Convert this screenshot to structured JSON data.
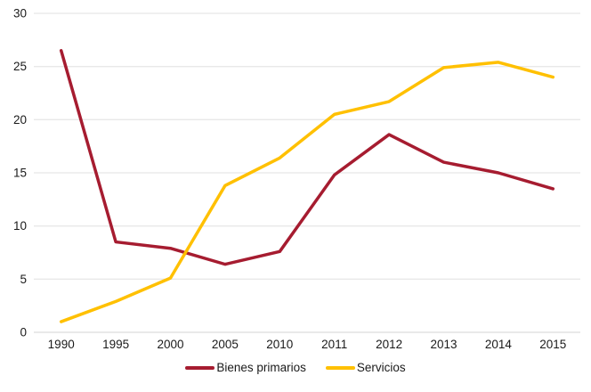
{
  "chart_data": {
    "type": "line",
    "title": "",
    "xlabel": "",
    "ylabel": "",
    "categories": [
      "1990",
      "1995",
      "2000",
      "2005",
      "2010",
      "2011",
      "2012",
      "2013",
      "2014",
      "2015"
    ],
    "series": [
      {
        "name": "Bienes primarios",
        "color": "#A61C30",
        "values": [
          26.5,
          8.5,
          7.9,
          6.4,
          7.6,
          14.8,
          18.6,
          16.0,
          15.0,
          13.5
        ]
      },
      {
        "name": "Servicios",
        "color": "#FFC000",
        "values": [
          1.0,
          2.9,
          5.1,
          13.8,
          16.4,
          20.5,
          21.7,
          24.9,
          25.4,
          24.0
        ]
      }
    ],
    "ylim": [
      0,
      30
    ],
    "ytick_step": 5,
    "ytick_labels": [
      "0",
      "5",
      "10",
      "15",
      "20",
      "25",
      "30"
    ],
    "grid": "horizontal",
    "legend_position": "bottom-center",
    "colors": {
      "grid": "#E8E8E8",
      "axis_zero_line": "#DCDCDC",
      "text": "#1a1a1a",
      "background": "#FFFFFF"
    }
  }
}
